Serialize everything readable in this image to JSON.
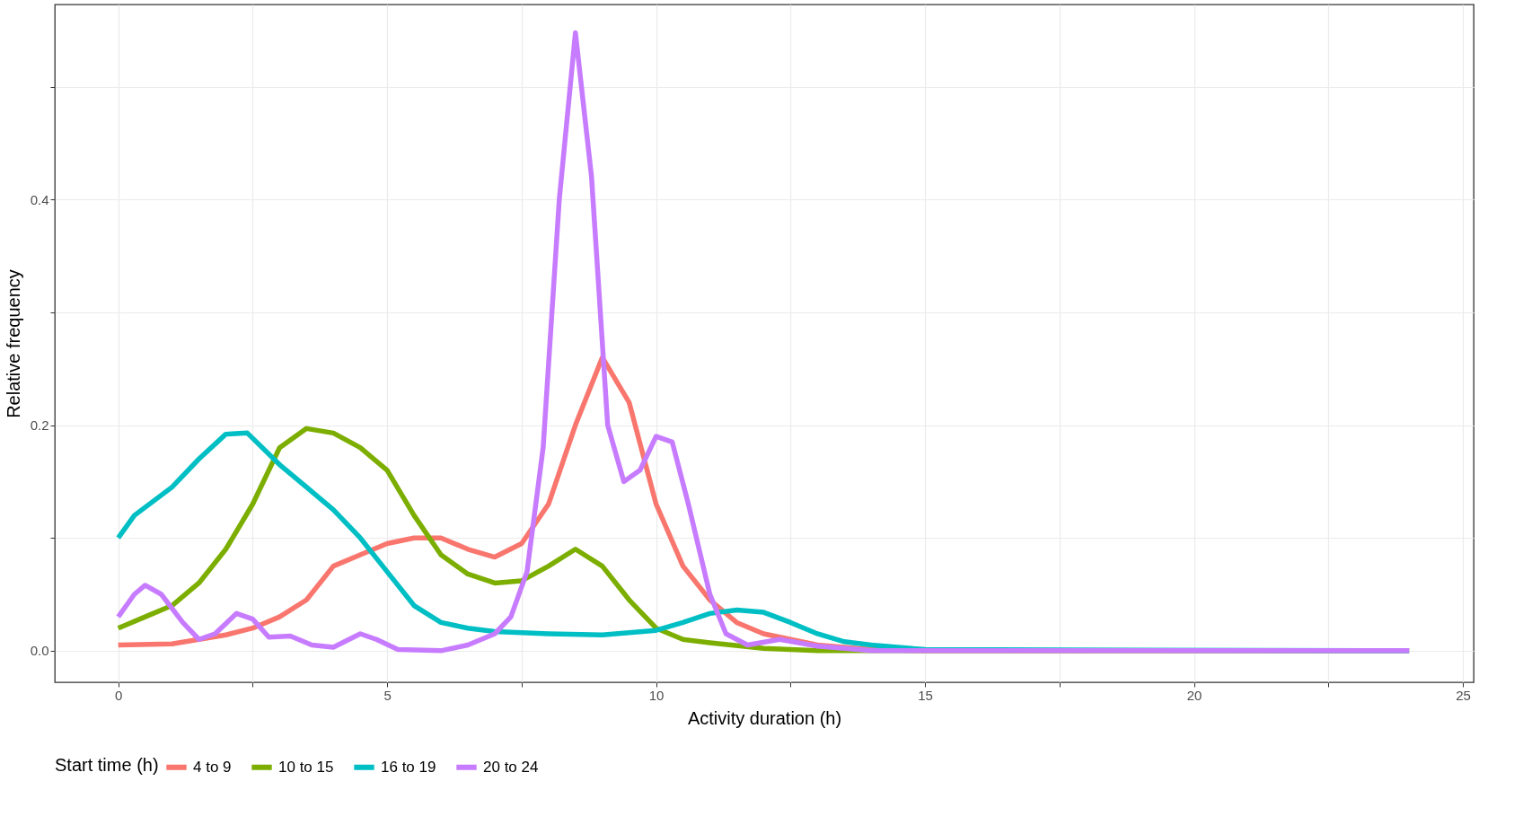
{
  "chart_data": {
    "type": "line",
    "xlabel": "Activity duration (h)",
    "ylabel": "Relative frequency",
    "legend_title": "Start time (h)",
    "legend": "bottom",
    "grid": true,
    "line_style": "solid",
    "xlim": [
      -1.18,
      25.2
    ],
    "ylim": [
      -0.028,
      0.573
    ],
    "xticks": [
      0,
      {
        "value": 2.5,
        "label": null
      },
      5,
      {
        "value": 7.5,
        "label": null
      },
      10,
      {
        "value": 12.5,
        "label": null
      },
      15,
      {
        "value": 17.5,
        "label": null
      },
      20,
      {
        "value": 22.5,
        "label": null
      },
      25
    ],
    "yticks": [
      {
        "value": 0,
        "label": "0.0"
      },
      {
        "value": 0.1,
        "label": null
      },
      {
        "value": 0.2,
        "label": "0.2"
      },
      {
        "value": 0.3,
        "label": null
      },
      {
        "value": 0.4,
        "label": "0.4"
      },
      {
        "value": 0.5,
        "label": null
      }
    ],
    "series": [
      {
        "name": "4 to 9",
        "color": "#f8766d",
        "x": [
          0,
          1,
          1.5,
          2,
          2.5,
          3,
          3.5,
          4,
          4.5,
          5,
          5.5,
          6,
          6.5,
          7,
          7.5,
          8,
          8.5,
          9,
          9.5,
          10,
          10.5,
          11,
          11.5,
          12,
          12.5,
          13,
          14,
          15,
          24
        ],
        "values": [
          0.005,
          0.006,
          0.01,
          0.014,
          0.02,
          0.03,
          0.045,
          0.075,
          0.085,
          0.095,
          0.1,
          0.1,
          0.09,
          0.083,
          0.095,
          0.13,
          0.2,
          0.26,
          0.22,
          0.13,
          0.075,
          0.045,
          0.025,
          0.015,
          0.01,
          0.005,
          0.001,
          0,
          0
        ]
      },
      {
        "name": "10 to 15",
        "color": "#7cae00",
        "x": [
          0,
          0.5,
          1,
          1.5,
          2,
          2.5,
          3,
          3.5,
          4,
          4.5,
          5,
          5.5,
          6,
          6.5,
          7,
          7.5,
          8,
          8.5,
          9,
          9.5,
          10,
          10.5,
          11,
          12,
          13,
          24
        ],
        "values": [
          0.02,
          0.03,
          0.04,
          0.06,
          0.09,
          0.13,
          0.18,
          0.197,
          0.193,
          0.18,
          0.16,
          0.12,
          0.085,
          0.068,
          0.06,
          0.062,
          0.075,
          0.09,
          0.075,
          0.045,
          0.02,
          0.01,
          0.007,
          0.002,
          0,
          0
        ]
      },
      {
        "name": "16 to 19",
        "color": "#00bfc4",
        "x": [
          0,
          0.3,
          1,
          1.5,
          2,
          2.4,
          3,
          3.5,
          4,
          4.5,
          5,
          5.5,
          6,
          6.5,
          7,
          8,
          9,
          10,
          10.5,
          11,
          11.5,
          12,
          12.5,
          13,
          13.5,
          14,
          15,
          24
        ],
        "values": [
          0.1,
          0.12,
          0.145,
          0.17,
          0.192,
          0.193,
          0.165,
          0.145,
          0.125,
          0.1,
          0.07,
          0.04,
          0.025,
          0.02,
          0.017,
          0.015,
          0.014,
          0.018,
          0.025,
          0.033,
          0.036,
          0.034,
          0.025,
          0.015,
          0.008,
          0.005,
          0.001,
          0
        ]
      },
      {
        "name": "20 to 24",
        "color": "#c77cff",
        "x": [
          0,
          0.3,
          0.5,
          0.8,
          1.2,
          1.5,
          1.8,
          2.2,
          2.5,
          2.8,
          3.2,
          3.6,
          4,
          4.5,
          4.8,
          5.2,
          6,
          6.5,
          7,
          7.3,
          7.6,
          7.9,
          8.2,
          8.5,
          8.8,
          9.1,
          9.4,
          9.7,
          10,
          10.3,
          10.6,
          11,
          11.3,
          11.7,
          12.3,
          13,
          14,
          24
        ],
        "values": [
          0.03,
          0.05,
          0.058,
          0.05,
          0.025,
          0.01,
          0.015,
          0.033,
          0.028,
          0.012,
          0.013,
          0.005,
          0.003,
          0.015,
          0.01,
          0.001,
          0,
          0.005,
          0.015,
          0.03,
          0.07,
          0.18,
          0.4,
          0.548,
          0.42,
          0.2,
          0.15,
          0.16,
          0.19,
          0.185,
          0.13,
          0.05,
          0.015,
          0.005,
          0.01,
          0.004,
          0,
          0
        ]
      }
    ]
  }
}
